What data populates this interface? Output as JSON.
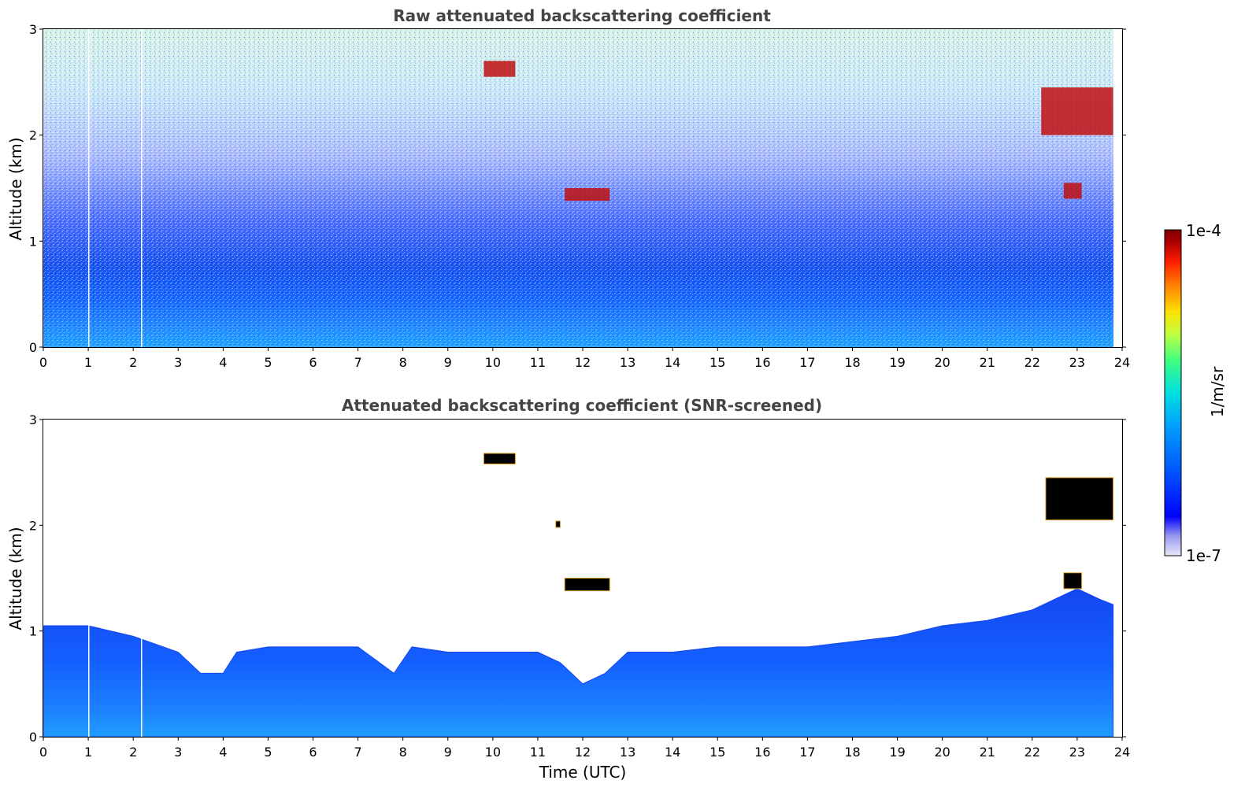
{
  "chart_data": [
    {
      "type": "heatmap",
      "title": "Raw attenuated backscattering coefficient",
      "xlabel": "",
      "ylabel": "Altitude (km)",
      "xlim": [
        0,
        24
      ],
      "ylim": [
        0,
        3
      ],
      "x_ticks": [
        "0",
        "1",
        "2",
        "3",
        "4",
        "5",
        "6",
        "7",
        "8",
        "9",
        "10",
        "11",
        "12",
        "13",
        "14",
        "15",
        "16",
        "17",
        "18",
        "19",
        "20",
        "21",
        "22",
        "23",
        "24"
      ],
      "y_ticks": [
        "0",
        "1",
        "2",
        "3"
      ],
      "features": [
        {
          "desc": "boundary layer dense signal",
          "x": [
            0,
            23.8
          ],
          "top_km": 1.0
        },
        {
          "desc": "cloud",
          "x": [
            11.6,
            12.6
          ],
          "alt_km": [
            1.38,
            1.5
          ]
        },
        {
          "desc": "cloud",
          "x": [
            9.8,
            10.5
          ],
          "alt_km": [
            2.55,
            2.7
          ]
        },
        {
          "desc": "cloud",
          "x": [
            22.2,
            23.8
          ],
          "alt_km": [
            2.0,
            2.45
          ]
        },
        {
          "desc": "cloud",
          "x": [
            22.7,
            23.1
          ],
          "alt_km": [
            1.4,
            1.55
          ]
        }
      ]
    },
    {
      "type": "heatmap",
      "title": "Attenuated backscattering coefficient (SNR-screened)",
      "xlabel": "Time (UTC)",
      "ylabel": "Altitude (km)",
      "xlim": [
        0,
        24
      ],
      "ylim": [
        0,
        3
      ],
      "x_ticks": [
        "0",
        "1",
        "2",
        "3",
        "4",
        "5",
        "6",
        "7",
        "8",
        "9",
        "10",
        "11",
        "12",
        "13",
        "14",
        "15",
        "16",
        "17",
        "18",
        "19",
        "20",
        "21",
        "22",
        "23",
        "24"
      ],
      "y_ticks": [
        "0",
        "1",
        "2",
        "3"
      ],
      "boundary_layer_top_km": {
        "x": [
          0,
          1,
          2,
          3,
          3.5,
          4,
          4.3,
          5,
          6,
          7,
          7.8,
          8.2,
          9,
          10,
          11,
          11.5,
          12,
          12.5,
          13,
          14,
          15,
          16,
          17,
          18,
          19,
          20,
          21,
          22,
          22.5,
          23,
          23.5,
          23.8
        ],
        "top_km": [
          1.05,
          1.05,
          0.95,
          0.8,
          0.6,
          0.6,
          0.8,
          0.85,
          0.85,
          0.85,
          0.6,
          0.85,
          0.8,
          0.8,
          0.8,
          0.7,
          0.5,
          0.6,
          0.8,
          0.8,
          0.85,
          0.85,
          0.85,
          0.9,
          0.95,
          1.05,
          1.1,
          1.2,
          1.3,
          1.4,
          1.3,
          1.25
        ]
      },
      "clouds": [
        {
          "x": [
            11.6,
            12.6
          ],
          "alt_km": [
            1.38,
            1.5
          ]
        },
        {
          "x": [
            9.8,
            10.5
          ],
          "alt_km": [
            2.58,
            2.68
          ]
        },
        {
          "x": [
            11.4,
            11.5
          ],
          "alt_km": [
            1.98,
            2.04
          ]
        },
        {
          "x": [
            22.3,
            23.8
          ],
          "alt_km": [
            2.05,
            2.45
          ]
        },
        {
          "x": [
            22.7,
            23.1
          ],
          "alt_km": [
            1.4,
            1.55
          ]
        }
      ]
    }
  ],
  "colorbar": {
    "max_label": "1e-4",
    "min_label": "1e-7",
    "unit_label": "1/m/sr",
    "scale": "log",
    "colormap": [
      "#e8e8f8",
      "#9999ee",
      "#0000ff",
      "#0050ff",
      "#00a0ff",
      "#00e0e0",
      "#40ff80",
      "#c0ff40",
      "#ffe000",
      "#ff8000",
      "#ff2000",
      "#b00000",
      "#800000"
    ]
  }
}
